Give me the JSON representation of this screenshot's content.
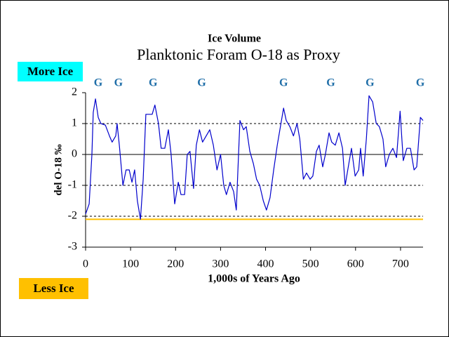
{
  "chart_data": {
    "type": "line",
    "title": "Ice Volume",
    "subtitle": "Planktonic Foram O-18 as Proxy",
    "x_label": "1,000s of Years Ago",
    "y_label": "del O-18 ‰",
    "annotations": [
      {
        "text": "More Ice",
        "color": "#00ffff"
      },
      {
        "text": "Less Ice",
        "color": "#ffc000"
      }
    ],
    "glacial_markers": {
      "label": "G",
      "color": "#1f6ea8",
      "x": [
        28,
        73,
        150,
        258,
        440,
        545,
        632,
        744
      ]
    },
    "reference_line": {
      "value": -2.1,
      "color": "#ffc000"
    },
    "xlim": [
      0,
      750
    ],
    "xticks": [
      0,
      100,
      200,
      300,
      400,
      500,
      600,
      700
    ],
    "ylim": [
      -3,
      2
    ],
    "yticks": [
      -3,
      -2,
      -1,
      0,
      1,
      2
    ],
    "grid": true,
    "series": [
      {
        "name": "del O-18",
        "color": "#0000cc",
        "x": [
          0,
          8,
          14,
          17,
          22,
          28,
          34,
          44,
          53,
          59,
          67,
          70,
          75,
          83,
          90,
          97,
          103,
          109,
          115,
          122,
          128,
          134,
          140,
          148,
          154,
          162,
          168,
          176,
          184,
          190,
          198,
          206,
          212,
          220,
          226,
          232,
          240,
          246,
          253,
          260,
          268,
          276,
          284,
          292,
          300,
          307,
          313,
          321,
          329,
          335,
          343,
          351,
          357,
          365,
          373,
          380,
          387,
          395,
          402,
          410,
          418,
          426,
          433,
          440,
          446,
          454,
          462,
          470,
          476,
          484,
          491,
          499,
          505,
          513,
          519,
          527,
          533,
          541,
          547,
          555,
          563,
          571,
          577,
          585,
          591,
          599,
          607,
          611,
          617,
          624,
          630,
          638,
          646,
          653,
          661,
          667,
          675,
          683,
          691,
          699,
          706,
          714,
          722,
          730,
          736,
          744,
          750
        ],
        "values": [
          -1.93,
          -1.6,
          0,
          1.36,
          1.8,
          1.2,
          1.0,
          0.95,
          0.6,
          0.4,
          0.6,
          1.0,
          0.3,
          -1.0,
          -0.5,
          -0.5,
          -0.9,
          -0.5,
          -1.5,
          -2.1,
          -0.8,
          1.3,
          1.3,
          1.3,
          1.6,
          1.0,
          0.2,
          0.2,
          0.8,
          0.0,
          -1.6,
          -0.9,
          -1.3,
          -1.3,
          0.0,
          0.1,
          -1.1,
          0.3,
          0.8,
          0.4,
          0.6,
          0.8,
          0.3,
          -0.5,
          0.0,
          -1.0,
          -1.3,
          -0.9,
          -1.2,
          -1.8,
          1.1,
          0.8,
          0.9,
          0.1,
          -0.3,
          -0.8,
          -1.0,
          -1.5,
          -1.8,
          -1.4,
          -0.5,
          0.3,
          0.9,
          1.5,
          1.1,
          0.9,
          0.6,
          1.0,
          0.5,
          -0.8,
          -0.6,
          -0.8,
          -0.7,
          0.1,
          0.3,
          -0.4,
          0.0,
          0.7,
          0.4,
          0.3,
          0.7,
          0.2,
          -1.0,
          -0.3,
          0.2,
          -0.7,
          -0.5,
          0.2,
          -0.7,
          0.5,
          1.9,
          1.7,
          1.0,
          0.9,
          0.5,
          -0.4,
          0.0,
          0.2,
          -0.1,
          1.4,
          -0.2,
          0.2,
          0.2,
          -0.5,
          -0.4,
          1.2,
          1.1
        ]
      }
    ]
  }
}
